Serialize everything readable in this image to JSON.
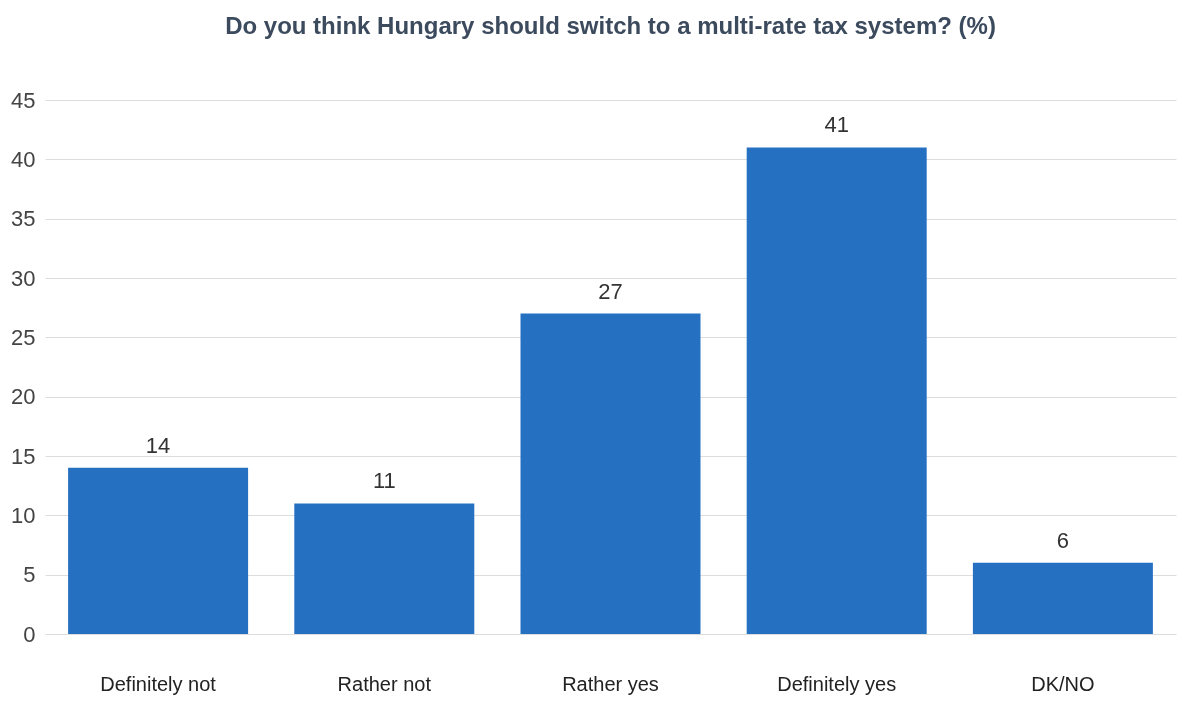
{
  "chart_data": {
    "type": "bar",
    "title": "Do you think Hungary should switch to a multi-rate tax system? (%)",
    "categories": [
      "Definitely not",
      "Rather not",
      "Rather yes",
      "Definitely yes",
      "DK/NO"
    ],
    "values": [
      14,
      11,
      27,
      41,
      6
    ],
    "color": "#2670c2",
    "ylim": [
      0,
      45
    ],
    "yticks": [
      0,
      5,
      10,
      15,
      20,
      25,
      30,
      35,
      40,
      45
    ],
    "grid": "y",
    "data_labels": true
  }
}
